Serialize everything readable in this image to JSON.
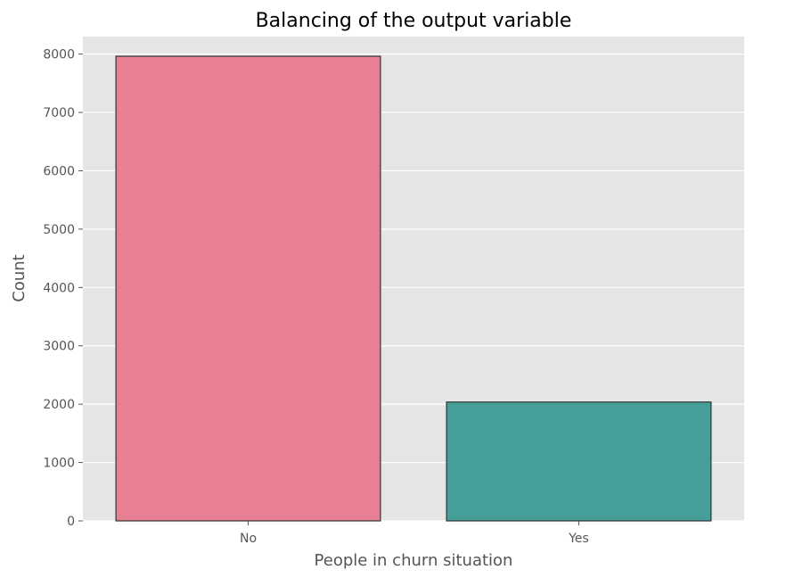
{
  "chart_data": {
    "type": "bar",
    "title": "Balancing of the output variable",
    "xlabel": "People in churn situation",
    "ylabel": "Count",
    "categories": [
      "No",
      "Yes"
    ],
    "values": [
      7963,
      2037
    ],
    "colors": [
      "#e88093",
      "#469e98"
    ],
    "edge_color": "#333333",
    "background_color": "#e5e5e5",
    "grid_color": "#ffffff",
    "grid": true,
    "ylim": [
      0,
      8300
    ],
    "yticks": [
      0,
      1000,
      2000,
      3000,
      4000,
      5000,
      6000,
      7000,
      8000
    ]
  }
}
